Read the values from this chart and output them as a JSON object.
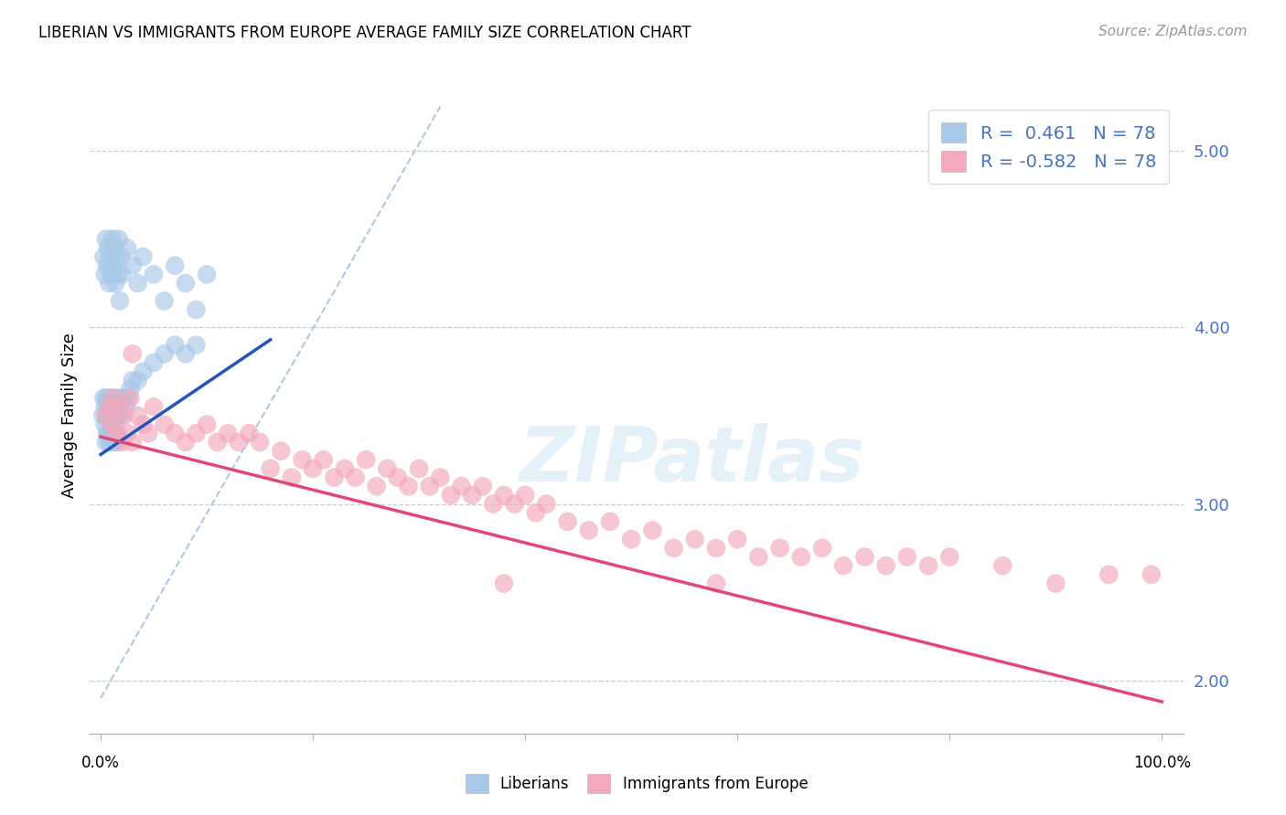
{
  "title": "LIBERIAN VS IMMIGRANTS FROM EUROPE AVERAGE FAMILY SIZE CORRELATION CHART",
  "source": "Source: ZipAtlas.com",
  "ylabel": "Average Family Size",
  "y_ticks_right": [
    2.0,
    3.0,
    4.0,
    5.0
  ],
  "y_min": 1.7,
  "y_max": 5.3,
  "x_min": -0.01,
  "x_max": 1.02,
  "watermark_text": "ZIPatlas",
  "legend_R1": " 0.461",
  "legend_N1": "78",
  "legend_R2": "-0.582",
  "legend_N2": "78",
  "blue_color": "#a8c8e8",
  "pink_color": "#f4a8bc",
  "blue_line_color": "#2255bb",
  "pink_line_color": "#e04878",
  "ref_line_color": "#b0c8e0",
  "blue_line_x0": 0.0,
  "blue_line_x1": 0.16,
  "blue_line_y0": 3.28,
  "blue_line_y1": 3.93,
  "pink_line_x0": 0.0,
  "pink_line_x1": 1.0,
  "pink_line_y0": 3.38,
  "pink_line_y1": 1.88,
  "ref_line_x0": 0.0,
  "ref_line_x1": 0.32,
  "ref_line_y0": 1.9,
  "ref_line_y1": 5.25,
  "liberians_x": [
    0.002,
    0.003,
    0.004,
    0.004,
    0.005,
    0.005,
    0.005,
    0.006,
    0.006,
    0.007,
    0.007,
    0.007,
    0.008,
    0.008,
    0.009,
    0.009,
    0.009,
    0.01,
    0.01,
    0.01,
    0.011,
    0.011,
    0.012,
    0.012,
    0.013,
    0.013,
    0.014,
    0.014,
    0.015,
    0.015,
    0.016,
    0.016,
    0.017,
    0.018,
    0.019,
    0.02,
    0.022,
    0.024,
    0.026,
    0.028,
    0.03,
    0.035,
    0.04,
    0.05,
    0.06,
    0.07,
    0.08,
    0.09,
    0.003,
    0.004,
    0.005,
    0.006,
    0.007,
    0.008,
    0.009,
    0.01,
    0.011,
    0.012,
    0.013,
    0.014,
    0.015,
    0.016,
    0.017,
    0.018,
    0.019,
    0.02,
    0.025,
    0.03,
    0.035,
    0.04,
    0.05,
    0.06,
    0.07,
    0.08,
    0.09,
    0.1
  ],
  "liberians_y": [
    3.5,
    3.6,
    3.45,
    3.55,
    3.5,
    3.35,
    3.6,
    3.5,
    3.4,
    3.55,
    3.4,
    3.6,
    3.5,
    3.35,
    3.55,
    3.4,
    3.6,
    3.5,
    3.35,
    3.55,
    3.4,
    3.6,
    3.5,
    3.35,
    3.55,
    3.4,
    3.5,
    3.6,
    3.5,
    3.35,
    3.55,
    3.4,
    3.5,
    3.6,
    3.5,
    3.55,
    3.6,
    3.55,
    3.6,
    3.65,
    3.7,
    3.7,
    3.75,
    3.8,
    3.85,
    3.9,
    3.85,
    3.9,
    4.4,
    4.3,
    4.5,
    4.35,
    4.45,
    4.25,
    4.4,
    4.3,
    4.5,
    4.35,
    4.45,
    4.25,
    4.4,
    4.3,
    4.5,
    4.15,
    4.4,
    4.3,
    4.45,
    4.35,
    4.25,
    4.4,
    4.3,
    4.15,
    4.35,
    4.25,
    4.1,
    4.3
  ],
  "europe_x": [
    0.005,
    0.008,
    0.01,
    0.012,
    0.015,
    0.018,
    0.02,
    0.022,
    0.025,
    0.028,
    0.03,
    0.035,
    0.04,
    0.045,
    0.05,
    0.06,
    0.07,
    0.08,
    0.09,
    0.1,
    0.11,
    0.12,
    0.13,
    0.14,
    0.15,
    0.16,
    0.17,
    0.18,
    0.19,
    0.2,
    0.21,
    0.22,
    0.23,
    0.24,
    0.25,
    0.26,
    0.27,
    0.28,
    0.29,
    0.3,
    0.31,
    0.32,
    0.33,
    0.34,
    0.35,
    0.36,
    0.37,
    0.38,
    0.39,
    0.4,
    0.41,
    0.42,
    0.44,
    0.46,
    0.48,
    0.5,
    0.52,
    0.54,
    0.56,
    0.58,
    0.6,
    0.62,
    0.64,
    0.66,
    0.68,
    0.7,
    0.72,
    0.74,
    0.76,
    0.78,
    0.8,
    0.85,
    0.9,
    0.95,
    0.99,
    0.03,
    0.38,
    0.58
  ],
  "europe_y": [
    3.5,
    3.55,
    3.45,
    3.6,
    3.4,
    3.55,
    3.35,
    3.5,
    3.4,
    3.6,
    3.35,
    3.5,
    3.45,
    3.4,
    3.55,
    3.45,
    3.4,
    3.35,
    3.4,
    3.45,
    3.35,
    3.4,
    3.35,
    3.4,
    3.35,
    3.2,
    3.3,
    3.15,
    3.25,
    3.2,
    3.25,
    3.15,
    3.2,
    3.15,
    3.25,
    3.1,
    3.2,
    3.15,
    3.1,
    3.2,
    3.1,
    3.15,
    3.05,
    3.1,
    3.05,
    3.1,
    3.0,
    3.05,
    3.0,
    3.05,
    2.95,
    3.0,
    2.9,
    2.85,
    2.9,
    2.8,
    2.85,
    2.75,
    2.8,
    2.75,
    2.8,
    2.7,
    2.75,
    2.7,
    2.75,
    2.65,
    2.7,
    2.65,
    2.7,
    2.65,
    2.7,
    2.65,
    2.55,
    2.6,
    2.6,
    3.85,
    2.55,
    2.55
  ]
}
